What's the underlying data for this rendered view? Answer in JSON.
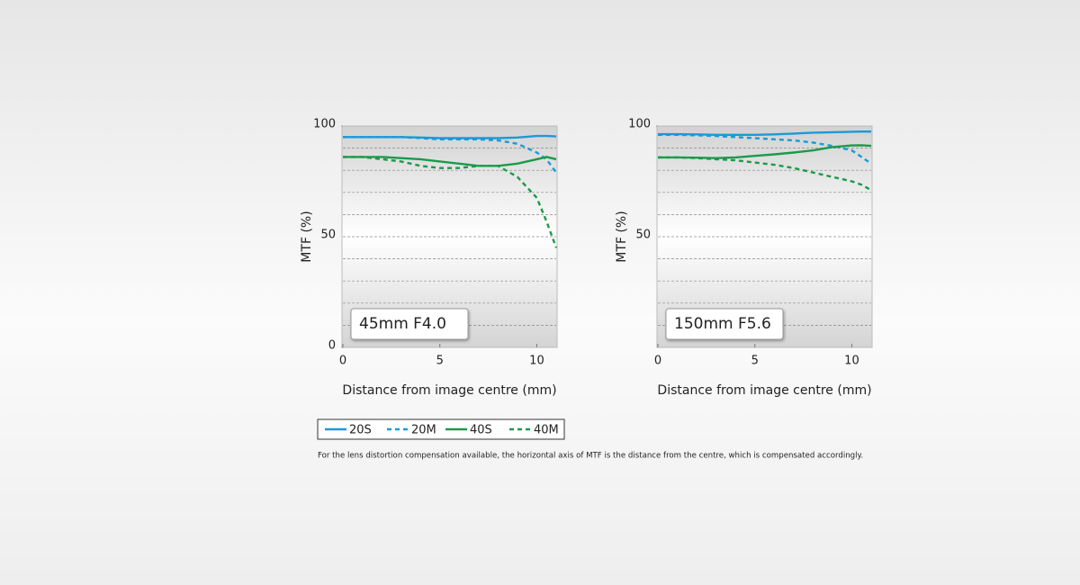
{
  "chart_data": [
    {
      "type": "line",
      "title": "45mm F4.0",
      "xlabel": "Distance from image centre (mm)",
      "ylabel": "MTF (%)",
      "x": [
        0,
        1,
        2,
        3,
        4,
        5,
        6,
        7,
        8,
        9,
        10,
        10.5,
        11
      ],
      "series": [
        {
          "name": "20S",
          "color": "#1a9ad7",
          "dashed": false,
          "values": [
            95,
            95,
            95,
            95,
            94.8,
            94.5,
            94.5,
            94.5,
            94.5,
            94.8,
            95.5,
            95.5,
            95.3
          ]
        },
        {
          "name": "20M",
          "color": "#1a9ad7",
          "dashed": true,
          "values": [
            95,
            95,
            95,
            95,
            94.5,
            94,
            94,
            94,
            93.5,
            92,
            88,
            85,
            79
          ]
        },
        {
          "name": "40S",
          "color": "#1b9a4b",
          "dashed": false,
          "values": [
            86,
            86,
            86,
            85.5,
            85,
            84,
            83,
            82,
            82,
            83,
            85,
            86,
            85
          ]
        },
        {
          "name": "40M",
          "color": "#1b9a4b",
          "dashed": true,
          "values": [
            86,
            86,
            85,
            84,
            82,
            81,
            81,
            82,
            82,
            77,
            67.5,
            57,
            45
          ]
        }
      ],
      "xlim": [
        0,
        11
      ],
      "xticks": [
        0,
        5,
        10
      ],
      "ylim": [
        0,
        100
      ],
      "yticks": [
        0,
        50,
        100
      ],
      "yminorticks": [
        10,
        20,
        30,
        40,
        60,
        70,
        80,
        90
      ],
      "grid": true
    },
    {
      "type": "line",
      "title": "150mm F5.6",
      "xlabel": "Distance from image centre (mm)",
      "ylabel": "MTF (%)",
      "x": [
        0,
        1,
        2,
        3,
        4,
        5,
        6,
        7,
        8,
        9,
        10,
        10.5,
        11
      ],
      "series": [
        {
          "name": "20S",
          "color": "#1a9ad7",
          "dashed": false,
          "values": [
            96.3,
            96.3,
            96.2,
            96,
            96,
            96,
            96.2,
            96.6,
            97,
            97.2,
            97.4,
            97.5,
            97.5
          ]
        },
        {
          "name": "20M",
          "color": "#1a9ad7",
          "dashed": true,
          "values": [
            96,
            96,
            95.8,
            95.5,
            95,
            94.5,
            94,
            93.5,
            92.5,
            91,
            89,
            86,
            83
          ]
        },
        {
          "name": "40S",
          "color": "#1b9a4b",
          "dashed": false,
          "values": [
            85.8,
            85.8,
            85.7,
            85.5,
            85.8,
            86.5,
            87.2,
            88,
            89,
            90.5,
            91.2,
            91.3,
            91
          ]
        },
        {
          "name": "40M",
          "color": "#1b9a4b",
          "dashed": true,
          "values": [
            85.8,
            85.8,
            85.5,
            85,
            84.5,
            83.5,
            82.5,
            81,
            79,
            77,
            75,
            73.5,
            71
          ]
        }
      ],
      "xlim": [
        0,
        11
      ],
      "xticks": [
        0,
        5,
        10
      ],
      "ylim": [
        0,
        100
      ],
      "yticks": [
        50,
        100
      ],
      "yminorticks": [
        10,
        20,
        30,
        40,
        60,
        70,
        80,
        90
      ],
      "grid": true
    }
  ],
  "footnote": "For the lens distortion compensation available, the horizontal axis of MTF is the distance from the centre, which is compensated accordingly."
}
